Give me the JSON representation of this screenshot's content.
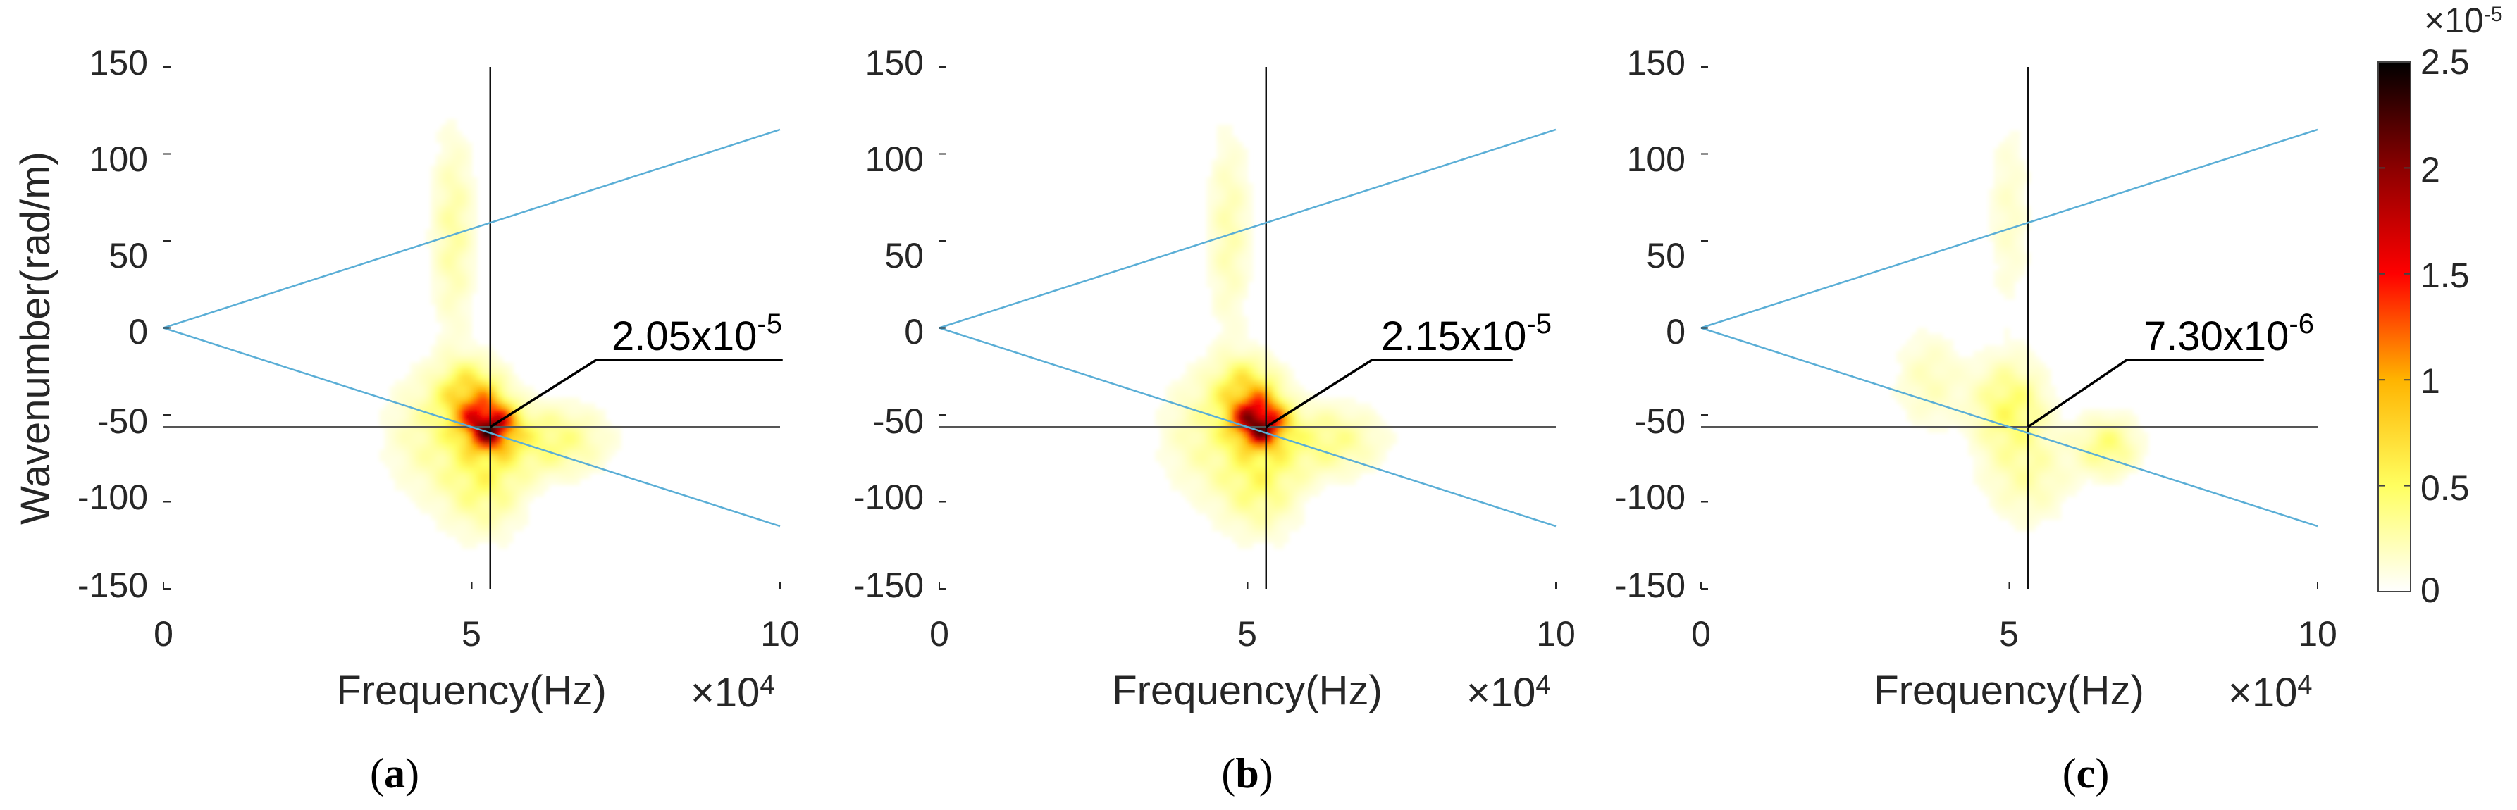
{
  "chart_data": [
    {
      "type": "heatmap",
      "panel_label": "a",
      "xlabel": "Frequency(Hz)",
      "x_multiplier": "×10",
      "x_multiplier_exp": "4",
      "ylabel": "Wavenumber(rad/m)",
      "xlim": [
        0,
        10
      ],
      "ylim": [
        -150,
        150
      ],
      "x_ticks": [
        0,
        5,
        10
      ],
      "y_ticks": [
        150,
        100,
        50,
        0,
        -50,
        -100,
        -150
      ],
      "crosshair": {
        "x": 5.3,
        "y": -57
      },
      "dispersion_lines": [
        {
          "from": [
            0,
            0
          ],
          "to": [
            10,
            114
          ]
        },
        {
          "from": [
            0,
            0
          ],
          "to": [
            10,
            -114
          ]
        }
      ],
      "peak_value": 2.05e-05,
      "peak_label": {
        "mantissa": "2.05x10",
        "exponent": "-5"
      },
      "hotspots": [
        {
          "x": 5.3,
          "y": -57,
          "value": 2.05e-05,
          "sx": 0.28,
          "sy": 9
        },
        {
          "x": 5.0,
          "y": -40,
          "value": 1e-05,
          "sx": 0.35,
          "sy": 13
        },
        {
          "x": 5.2,
          "y": -85,
          "value": 5.5e-06,
          "sx": 0.45,
          "sy": 22
        },
        {
          "x": 6.3,
          "y": -65,
          "value": 5e-06,
          "sx": 0.6,
          "sy": 14
        },
        {
          "x": 4.7,
          "y": 55,
          "value": 3.5e-06,
          "sx": 0.25,
          "sy": 40
        },
        {
          "x": 4.3,
          "y": -60,
          "value": 3e-06,
          "sx": 0.5,
          "sy": 25
        }
      ]
    },
    {
      "type": "heatmap",
      "panel_label": "b",
      "xlabel": "Frequency(Hz)",
      "x_multiplier": "×10",
      "x_multiplier_exp": "4",
      "ylabel": "",
      "xlim": [
        0,
        10
      ],
      "ylim": [
        -150,
        150
      ],
      "x_ticks": [
        0,
        5,
        10
      ],
      "y_ticks": [
        150,
        100,
        50,
        0,
        -50,
        -100,
        -150
      ],
      "crosshair": {
        "x": 5.3,
        "y": -57
      },
      "dispersion_lines": [
        {
          "from": [
            0,
            0
          ],
          "to": [
            10,
            114
          ]
        },
        {
          "from": [
            0,
            0
          ],
          "to": [
            10,
            -114
          ]
        }
      ],
      "peak_value": 2.15e-05,
      "peak_label": {
        "mantissa": "2.15x10",
        "exponent": "-5"
      },
      "hotspots": [
        {
          "x": 5.2,
          "y": -55,
          "value": 2.15e-05,
          "sx": 0.28,
          "sy": 9
        },
        {
          "x": 5.0,
          "y": -38,
          "value": 9e-06,
          "sx": 0.35,
          "sy": 13
        },
        {
          "x": 5.2,
          "y": -85,
          "value": 5.5e-06,
          "sx": 0.45,
          "sy": 22
        },
        {
          "x": 6.3,
          "y": -65,
          "value": 4.5e-06,
          "sx": 0.6,
          "sy": 14
        },
        {
          "x": 4.7,
          "y": 55,
          "value": 3e-06,
          "sx": 0.25,
          "sy": 40
        },
        {
          "x": 4.3,
          "y": -60,
          "value": 3e-06,
          "sx": 0.5,
          "sy": 25
        }
      ]
    },
    {
      "type": "heatmap",
      "panel_label": "c",
      "xlabel": "Frequency(Hz)",
      "x_multiplier": "×10",
      "x_multiplier_exp": "4",
      "ylabel": "",
      "xlim": [
        0,
        10
      ],
      "ylim": [
        -150,
        150
      ],
      "x_ticks": [
        0,
        5,
        10
      ],
      "y_ticks": [
        150,
        100,
        50,
        0,
        -50,
        -100,
        -150
      ],
      "crosshair": {
        "x": 5.3,
        "y": -57
      },
      "dispersion_lines": [
        {
          "from": [
            0,
            0
          ],
          "to": [
            10,
            114
          ]
        },
        {
          "from": [
            0,
            0
          ],
          "to": [
            10,
            -114
          ]
        }
      ],
      "peak_value": 7.3e-06,
      "peak_label": {
        "mantissa": "7.30x10",
        "exponent": "-6"
      },
      "hotspots": [
        {
          "x": 5.0,
          "y": -45,
          "value": 5.5e-06,
          "sx": 0.4,
          "sy": 18
        },
        {
          "x": 6.6,
          "y": -68,
          "value": 5e-06,
          "sx": 0.35,
          "sy": 12
        },
        {
          "x": 5.3,
          "y": -85,
          "value": 3e-06,
          "sx": 0.5,
          "sy": 20
        },
        {
          "x": 3.7,
          "y": -30,
          "value": 2.5e-06,
          "sx": 0.4,
          "sy": 20
        },
        {
          "x": 5.0,
          "y": 65,
          "value": 2e-06,
          "sx": 0.25,
          "sy": 40
        }
      ]
    }
  ],
  "colorbar": {
    "range": [
      0,
      2.5
    ],
    "ticks": [
      0,
      0.5,
      1,
      1.5,
      2,
      2.5
    ],
    "multiplier": "×10",
    "multiplier_exp": "-5",
    "colors": [
      "#ffffff",
      "#ffff60",
      "#ffb400",
      "#ff0000",
      "#8b0000",
      "#000000"
    ]
  },
  "colors": {
    "crosshair": "#111111",
    "dispersion": "#5aaed6",
    "leader": "#000000"
  }
}
